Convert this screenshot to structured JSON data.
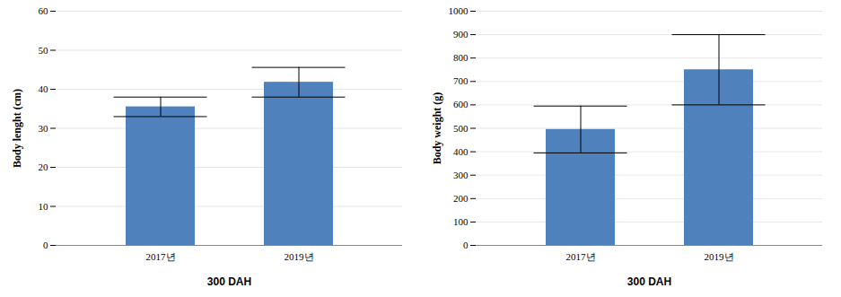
{
  "chart_data": [
    {
      "type": "bar",
      "categories": [
        "2017년",
        "2019년"
      ],
      "values": [
        35.5,
        41.8
      ],
      "errors": [
        2.5,
        3.8
      ],
      "color": "#4f81bd",
      "xlabel": "300 DAH",
      "ylabel": "Body lenght (cm)",
      "ylim": [
        0,
        60
      ],
      "yticks": [
        0,
        10,
        20,
        30,
        40,
        50,
        60
      ],
      "grid": true
    },
    {
      "type": "bar",
      "categories": [
        "2017년",
        "2019년"
      ],
      "values": [
        495,
        750
      ],
      "errors": [
        100,
        150
      ],
      "color": "#4f81bd",
      "xlabel": "300 DAH",
      "ylabel": "Body weight (g)",
      "ylim": [
        0,
        1000
      ],
      "yticks": [
        0,
        100,
        200,
        300,
        400,
        500,
        600,
        700,
        800,
        900,
        1000
      ],
      "grid": true
    }
  ]
}
